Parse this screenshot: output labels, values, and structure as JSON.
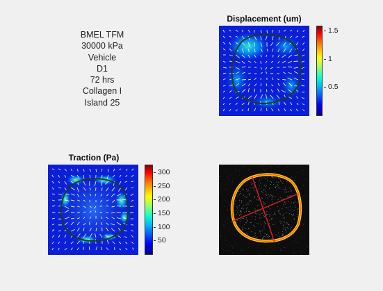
{
  "info_lines": [
    "BMEL TFM",
    "30000 kPa",
    "Vehicle",
    "D1",
    "72 hrs",
    "Collagen I",
    "Island 25"
  ],
  "displacement": {
    "title": "Displacement (um)",
    "colorbar_ticks": [
      "1.5",
      "1",
      "0.5"
    ],
    "colorbar_values": [
      1.5,
      1.0,
      0.5
    ],
    "colorbar_range": [
      0,
      1.6
    ],
    "colormap": "jet"
  },
  "traction": {
    "title": "Traction (Pa)",
    "colorbar_ticks": [
      "300",
      "250",
      "200",
      "150",
      "100",
      "50"
    ],
    "colorbar_values": [
      300,
      250,
      200,
      150,
      100,
      50
    ],
    "colorbar_range": [
      0,
      330
    ],
    "colormap": "jet"
  },
  "colors": {
    "background": "#f0f0f0",
    "field_blue": "#0b1fd6",
    "outline": "#1a3d1a",
    "vector": "#ffffff",
    "island_outline": "#ff8c00",
    "axis_line": "#e02020"
  }
}
